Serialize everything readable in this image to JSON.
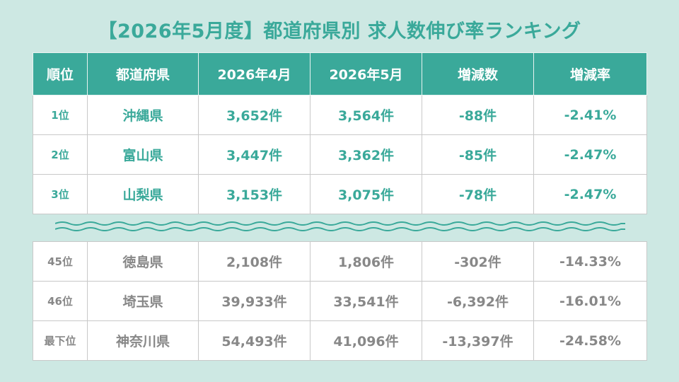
{
  "title": "【2026年5月度】都道府県別 求人数伸び率ランキング",
  "headers": [
    "順位",
    "都道府県",
    "2026年4月",
    "2026年5月",
    "増減数",
    "増減率"
  ],
  "top_rows": [
    {
      "rank": "1位",
      "pref": "沖縄県",
      "apr": "3,652件",
      "may": "3,564件",
      "diff": "-88件",
      "rate": "-2.41%"
    },
    {
      "rank": "2位",
      "pref": "富山県",
      "apr": "3,447件",
      "may": "3,362件",
      "diff": "-85件",
      "rate": "-2.47%"
    },
    {
      "rank": "3位",
      "pref": "山梨県",
      "apr": "3,153件",
      "may": "3,075件",
      "diff": "-78件",
      "rate": "-2.47%"
    }
  ],
  "bottom_rows": [
    {
      "rank": "45位",
      "pref": "徳島県",
      "apr": "2,108件",
      "may": "1,806件",
      "diff": "-302件",
      "rate": "-14.33%"
    },
    {
      "rank": "46位",
      "pref": "埼玉県",
      "apr": "39,933件",
      "may": "33,541件",
      "diff": "-6,392件",
      "rate": "-16.01%"
    },
    {
      "rank": "最下位",
      "pref": "神奈川県",
      "apr": "54,493件",
      "may": "41,096件",
      "diff": "-13,397件",
      "rate": "-24.58%"
    }
  ],
  "colors": {
    "accent": "#3aa99a",
    "background": "#cde8e3",
    "muted_text": "#888888"
  }
}
